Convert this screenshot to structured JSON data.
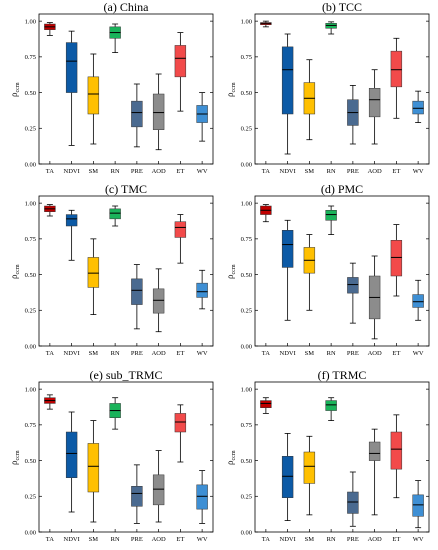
{
  "chart_data": [
    {
      "type": "boxplot",
      "title": "(a) China",
      "ylabel": "ρccm",
      "ylim": [
        0,
        1.0
      ],
      "yticks": [
        "0.00",
        "0.25",
        "0.50",
        "0.75",
        "1.00"
      ],
      "categories": [
        "TA",
        "NDVI",
        "SM",
        "RN",
        "PRE",
        "AOD",
        "ET",
        "WV"
      ],
      "boxes": [
        {
          "min": 0.9,
          "q1": 0.94,
          "median": 0.96,
          "q3": 0.98,
          "max": 0.99
        },
        {
          "min": 0.13,
          "q1": 0.5,
          "median": 0.72,
          "q3": 0.85,
          "max": 0.93
        },
        {
          "min": 0.14,
          "q1": 0.35,
          "median": 0.49,
          "q3": 0.61,
          "max": 0.77
        },
        {
          "min": 0.78,
          "q1": 0.88,
          "median": 0.92,
          "q3": 0.96,
          "max": 0.98
        },
        {
          "min": 0.12,
          "q1": 0.26,
          "median": 0.36,
          "q3": 0.44,
          "max": 0.56
        },
        {
          "min": 0.1,
          "q1": 0.24,
          "median": 0.36,
          "q3": 0.49,
          "max": 0.63
        },
        {
          "min": 0.37,
          "q1": 0.61,
          "median": 0.74,
          "q3": 0.83,
          "max": 0.92
        },
        {
          "min": 0.16,
          "q1": 0.29,
          "median": 0.35,
          "q3": 0.41,
          "max": 0.5
        }
      ]
    },
    {
      "type": "boxplot",
      "title": "(b) TCC",
      "ylabel": "ρccm",
      "ylim": [
        0,
        1.0
      ],
      "yticks": [
        "0.00",
        "0.25",
        "0.50",
        "0.75",
        "1.00"
      ],
      "categories": [
        "TA",
        "NDVI",
        "SM",
        "RN",
        "PRE",
        "AOD",
        "ET",
        "WV"
      ],
      "boxes": [
        {
          "min": 0.96,
          "q1": 0.975,
          "median": 0.985,
          "q3": 0.99,
          "max": 1.0
        },
        {
          "min": 0.07,
          "q1": 0.35,
          "median": 0.66,
          "q3": 0.82,
          "max": 0.91
        },
        {
          "min": 0.17,
          "q1": 0.35,
          "median": 0.46,
          "q3": 0.57,
          "max": 0.73
        },
        {
          "min": 0.91,
          "q1": 0.95,
          "median": 0.97,
          "q3": 0.985,
          "max": 0.995
        },
        {
          "min": 0.14,
          "q1": 0.27,
          "median": 0.36,
          "q3": 0.45,
          "max": 0.55
        },
        {
          "min": 0.14,
          "q1": 0.33,
          "median": 0.45,
          "q3": 0.53,
          "max": 0.66
        },
        {
          "min": 0.32,
          "q1": 0.54,
          "median": 0.66,
          "q3": 0.79,
          "max": 0.88
        },
        {
          "min": 0.29,
          "q1": 0.35,
          "median": 0.39,
          "q3": 0.44,
          "max": 0.51
        }
      ]
    },
    {
      "type": "boxplot",
      "title": "(c) TMC",
      "ylabel": "ρccm",
      "ylim": [
        0,
        1.0
      ],
      "yticks": [
        "0.00",
        "0.25",
        "0.50",
        "0.75",
        "1.00"
      ],
      "categories": [
        "TA",
        "NDVI",
        "SM",
        "RN",
        "PRE",
        "AOD",
        "ET",
        "WV"
      ],
      "boxes": [
        {
          "min": 0.91,
          "q1": 0.94,
          "median": 0.96,
          "q3": 0.98,
          "max": 0.99
        },
        {
          "min": 0.6,
          "q1": 0.84,
          "median": 0.89,
          "q3": 0.92,
          "max": 0.95
        },
        {
          "min": 0.22,
          "q1": 0.41,
          "median": 0.51,
          "q3": 0.62,
          "max": 0.75
        },
        {
          "min": 0.84,
          "q1": 0.89,
          "median": 0.93,
          "q3": 0.96,
          "max": 0.98
        },
        {
          "min": 0.12,
          "q1": 0.29,
          "median": 0.39,
          "q3": 0.47,
          "max": 0.57
        },
        {
          "min": 0.1,
          "q1": 0.23,
          "median": 0.32,
          "q3": 0.4,
          "max": 0.54
        },
        {
          "min": 0.58,
          "q1": 0.76,
          "median": 0.83,
          "q3": 0.87,
          "max": 0.92
        },
        {
          "min": 0.26,
          "q1": 0.34,
          "median": 0.38,
          "q3": 0.44,
          "max": 0.53
        }
      ]
    },
    {
      "type": "boxplot",
      "title": "(d) PMC",
      "ylabel": "ρccm",
      "ylim": [
        0,
        1.0
      ],
      "yticks": [
        "0.00",
        "0.25",
        "0.50",
        "0.75",
        "1.00"
      ],
      "categories": [
        "TA",
        "NDVI",
        "SM",
        "RN",
        "PRE",
        "AOD",
        "ET",
        "WV"
      ],
      "boxes": [
        {
          "min": 0.87,
          "q1": 0.92,
          "median": 0.95,
          "q3": 0.98,
          "max": 0.99
        },
        {
          "min": 0.18,
          "q1": 0.55,
          "median": 0.71,
          "q3": 0.81,
          "max": 0.88
        },
        {
          "min": 0.25,
          "q1": 0.51,
          "median": 0.6,
          "q3": 0.69,
          "max": 0.78
        },
        {
          "min": 0.78,
          "q1": 0.88,
          "median": 0.92,
          "q3": 0.95,
          "max": 0.98
        },
        {
          "min": 0.16,
          "q1": 0.37,
          "median": 0.43,
          "q3": 0.48,
          "max": 0.58
        },
        {
          "min": 0.05,
          "q1": 0.19,
          "median": 0.34,
          "q3": 0.49,
          "max": 0.63
        },
        {
          "min": 0.35,
          "q1": 0.49,
          "median": 0.62,
          "q3": 0.74,
          "max": 0.85
        },
        {
          "min": 0.18,
          "q1": 0.27,
          "median": 0.31,
          "q3": 0.36,
          "max": 0.46
        }
      ]
    },
    {
      "type": "boxplot",
      "title": "(e) sub_TRMC",
      "ylabel": "ρccm",
      "ylim": [
        0,
        1.0
      ],
      "yticks": [
        "0.00",
        "0.25",
        "0.50",
        "0.75",
        "1.00"
      ],
      "categories": [
        "TA",
        "NDVI",
        "SM",
        "RN",
        "PRE",
        "AOD",
        "ET",
        "WV"
      ],
      "boxes": [
        {
          "min": 0.86,
          "q1": 0.9,
          "median": 0.92,
          "q3": 0.94,
          "max": 0.96
        },
        {
          "min": 0.14,
          "q1": 0.38,
          "median": 0.55,
          "q3": 0.7,
          "max": 0.84
        },
        {
          "min": 0.07,
          "q1": 0.28,
          "median": 0.46,
          "q3": 0.62,
          "max": 0.78
        },
        {
          "min": 0.72,
          "q1": 0.8,
          "median": 0.85,
          "q3": 0.9,
          "max": 0.94
        },
        {
          "min": 0.06,
          "q1": 0.18,
          "median": 0.27,
          "q3": 0.32,
          "max": 0.47
        },
        {
          "min": 0.07,
          "q1": 0.19,
          "median": 0.3,
          "q3": 0.4,
          "max": 0.57
        },
        {
          "min": 0.49,
          "q1": 0.7,
          "median": 0.77,
          "q3": 0.83,
          "max": 0.89
        },
        {
          "min": 0.06,
          "q1": 0.16,
          "median": 0.25,
          "q3": 0.33,
          "max": 0.43
        }
      ]
    },
    {
      "type": "boxplot",
      "title": "(f) TRMC",
      "ylabel": "ρccm",
      "ylim": [
        0,
        1.0
      ],
      "yticks": [
        "0.00",
        "0.25",
        "0.50",
        "0.75",
        "1.00"
      ],
      "categories": [
        "TA",
        "NDVI",
        "SM",
        "RN",
        "PRE",
        "AOD",
        "ET",
        "WV"
      ],
      "boxes": [
        {
          "min": 0.83,
          "q1": 0.87,
          "median": 0.9,
          "q3": 0.92,
          "max": 0.94
        },
        {
          "min": 0.08,
          "q1": 0.24,
          "median": 0.39,
          "q3": 0.53,
          "max": 0.69
        },
        {
          "min": 0.12,
          "q1": 0.34,
          "median": 0.46,
          "q3": 0.56,
          "max": 0.67
        },
        {
          "min": 0.78,
          "q1": 0.85,
          "median": 0.89,
          "q3": 0.92,
          "max": 0.94
        },
        {
          "min": 0.04,
          "q1": 0.13,
          "median": 0.21,
          "q3": 0.28,
          "max": 0.42
        },
        {
          "min": 0.12,
          "q1": 0.5,
          "median": 0.55,
          "q3": 0.63,
          "max": 0.72
        },
        {
          "min": 0.24,
          "q1": 0.44,
          "median": 0.58,
          "q3": 0.7,
          "max": 0.82
        },
        {
          "min": 0.03,
          "q1": 0.11,
          "median": 0.19,
          "q3": 0.26,
          "max": 0.36
        }
      ]
    }
  ],
  "colors": {
    "TA": "#c00000",
    "NDVI": "#0c5aa6",
    "SM": "#ffc000",
    "RN": "#19b35a",
    "PRE": "#4a6a90",
    "AOD": "#8c8c8c",
    "ET": "#f24a4a",
    "WV": "#3e8fd4",
    "median_line": "#000000",
    "whisker": "#000000",
    "frame": "#000000"
  }
}
